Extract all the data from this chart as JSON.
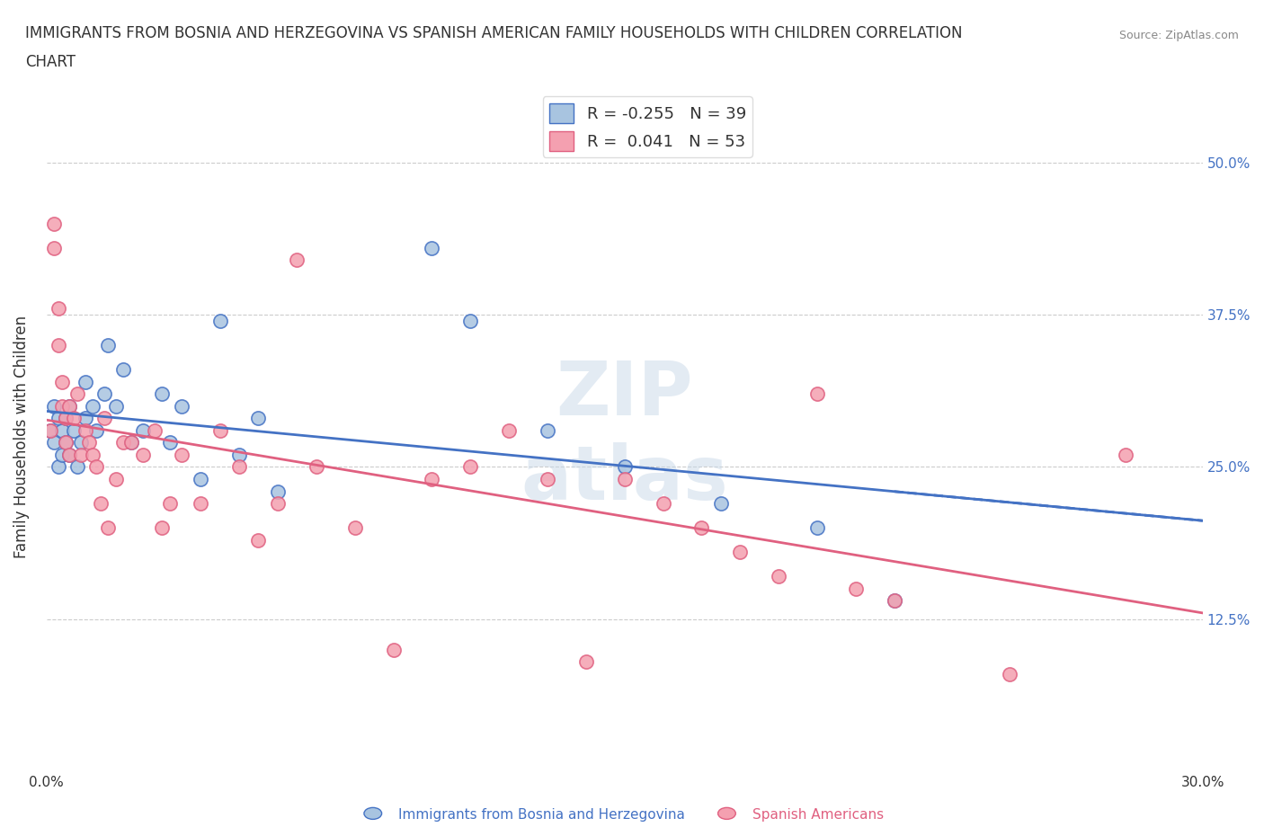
{
  "title_line1": "IMMIGRANTS FROM BOSNIA AND HERZEGOVINA VS SPANISH AMERICAN FAMILY HOUSEHOLDS WITH CHILDREN CORRELATION",
  "title_line2": "CHART",
  "source": "Source: ZipAtlas.com",
  "ylabel": "Family Households with Children",
  "xlim": [
    0.0,
    0.3
  ],
  "ylim": [
    0.0,
    0.55
  ],
  "xticks": [
    0.0,
    0.05,
    0.1,
    0.15,
    0.2,
    0.25,
    0.3
  ],
  "ytick_positions": [
    0.0,
    0.125,
    0.25,
    0.375,
    0.5
  ],
  "ytick_labels": [
    "",
    "12.5%",
    "25.0%",
    "37.5%",
    "50.0%"
  ],
  "blue_R": -0.255,
  "blue_N": 39,
  "pink_R": 0.041,
  "pink_N": 53,
  "blue_color": "#a8c4e0",
  "pink_color": "#f4a0b0",
  "blue_line_color": "#4472c4",
  "pink_line_color": "#e06080",
  "legend_label_blue": "Immigrants from Bosnia and Herzegovina",
  "legend_label_pink": "Spanish Americans",
  "blue_x": [
    0.001,
    0.002,
    0.002,
    0.003,
    0.003,
    0.004,
    0.004,
    0.005,
    0.005,
    0.006,
    0.006,
    0.007,
    0.008,
    0.009,
    0.01,
    0.01,
    0.012,
    0.013,
    0.015,
    0.016,
    0.018,
    0.02,
    0.022,
    0.025,
    0.03,
    0.032,
    0.035,
    0.04,
    0.045,
    0.05,
    0.055,
    0.06,
    0.1,
    0.11,
    0.13,
    0.15,
    0.175,
    0.2,
    0.22
  ],
  "blue_y": [
    0.28,
    0.27,
    0.3,
    0.25,
    0.29,
    0.26,
    0.28,
    0.27,
    0.29,
    0.26,
    0.3,
    0.28,
    0.25,
    0.27,
    0.29,
    0.32,
    0.3,
    0.28,
    0.31,
    0.35,
    0.3,
    0.33,
    0.27,
    0.28,
    0.31,
    0.27,
    0.3,
    0.24,
    0.37,
    0.26,
    0.29,
    0.23,
    0.43,
    0.37,
    0.28,
    0.25,
    0.22,
    0.2,
    0.14
  ],
  "pink_x": [
    0.001,
    0.002,
    0.002,
    0.003,
    0.003,
    0.004,
    0.004,
    0.005,
    0.005,
    0.006,
    0.006,
    0.007,
    0.008,
    0.009,
    0.01,
    0.011,
    0.012,
    0.013,
    0.014,
    0.015,
    0.016,
    0.018,
    0.02,
    0.022,
    0.025,
    0.028,
    0.03,
    0.032,
    0.035,
    0.04,
    0.045,
    0.05,
    0.055,
    0.06,
    0.065,
    0.07,
    0.08,
    0.09,
    0.1,
    0.11,
    0.12,
    0.13,
    0.14,
    0.15,
    0.16,
    0.17,
    0.18,
    0.19,
    0.2,
    0.21,
    0.22,
    0.25,
    0.28
  ],
  "pink_y": [
    0.28,
    0.43,
    0.45,
    0.35,
    0.38,
    0.3,
    0.32,
    0.27,
    0.29,
    0.26,
    0.3,
    0.29,
    0.31,
    0.26,
    0.28,
    0.27,
    0.26,
    0.25,
    0.22,
    0.29,
    0.2,
    0.24,
    0.27,
    0.27,
    0.26,
    0.28,
    0.2,
    0.22,
    0.26,
    0.22,
    0.28,
    0.25,
    0.19,
    0.22,
    0.42,
    0.25,
    0.2,
    0.1,
    0.24,
    0.25,
    0.28,
    0.24,
    0.09,
    0.24,
    0.22,
    0.2,
    0.18,
    0.16,
    0.31,
    0.15,
    0.14,
    0.08,
    0.26
  ]
}
